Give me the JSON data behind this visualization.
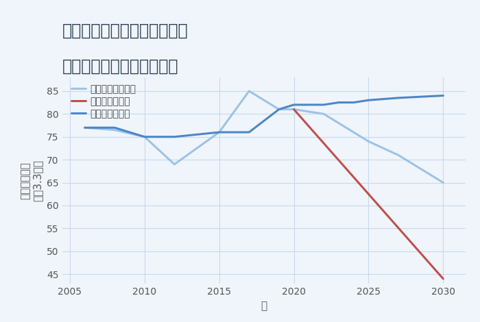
{
  "title_line1": "福岡県北九州市戸畑区高峰の",
  "title_line2": "中古マンションの価格推移",
  "xlabel": "年",
  "ylabel_top": "単価（万円）",
  "ylabel_bottom": "坪（3.3㎡）",
  "ylim": [
    43,
    88
  ],
  "yticks": [
    45,
    50,
    55,
    60,
    65,
    70,
    75,
    80,
    85
  ],
  "xlim": [
    2004.5,
    2031.5
  ],
  "xticks": [
    2005,
    2010,
    2015,
    2020,
    2025,
    2030
  ],
  "background_color": "#f0f5fb",
  "plot_bg_color": "#f0f5fb",
  "grid_color": "#c8d8ea",
  "good_scenario": {
    "label": "グッドシナリオ",
    "color": "#4e86c8",
    "linewidth": 2.2,
    "x": [
      2006,
      2008,
      2010,
      2012,
      2015,
      2017,
      2019,
      2020,
      2021,
      2022,
      2023,
      2024,
      2025,
      2027,
      2030
    ],
    "y": [
      77,
      77,
      75,
      75,
      76,
      76,
      81,
      82,
      82,
      82,
      82.5,
      82.5,
      83,
      83.5,
      84
    ]
  },
  "bad_scenario": {
    "label": "バッドシナリオ",
    "color": "#c0504d",
    "linewidth": 2.2,
    "x": [
      2020,
      2030
    ],
    "y": [
      81,
      44
    ]
  },
  "normal_scenario": {
    "label": "ノーマルシナリオ",
    "color": "#9dc3e6",
    "linewidth": 2.2,
    "x": [
      2006,
      2008,
      2010,
      2012,
      2015,
      2017,
      2019,
      2020,
      2022,
      2025,
      2027,
      2030
    ],
    "y": [
      77,
      76.5,
      75,
      69,
      76,
      85,
      81,
      81,
      80,
      74,
      71,
      65
    ]
  },
  "title_fontsize": 17,
  "axis_label_fontsize": 11,
  "tick_fontsize": 10,
  "legend_fontsize": 10
}
